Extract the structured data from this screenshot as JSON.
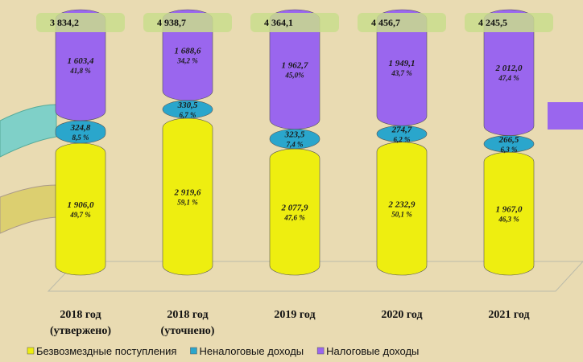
{
  "chart_data": {
    "type": "stacked-cylinder",
    "categories": [
      [
        "2018 год",
        "(утвержено)"
      ],
      [
        "2018 год",
        "(уточнено)"
      ],
      [
        "2019 год"
      ],
      [
        "2020 год"
      ],
      [
        "2021 год"
      ]
    ],
    "totals": [
      3834.2,
      4938.7,
      4364.1,
      4456.7,
      4245.5
    ],
    "total_labels": [
      "3 834,2",
      "4 938,7",
      "4 364,1",
      "4 456,7",
      "4 245,5"
    ],
    "series": [
      {
        "name": "Безвозмездные поступления",
        "color": "#eeee10",
        "values": [
          1906.0,
          2919.6,
          2077.9,
          2232.9,
          1967.0
        ],
        "value_labels": [
          "1 906,0",
          "2 919,6",
          "2 077,9",
          "2 232,9",
          "1 967,0"
        ],
        "shares": [
          49.7,
          59.1,
          47.6,
          50.1,
          46.3
        ],
        "share_labels": [
          "49,7 %",
          "59,1 %",
          "47,6 %",
          "50,1 %",
          "46,3 %"
        ]
      },
      {
        "name": "Неналоговые доходы",
        "color": "#2aa6cc",
        "values": [
          324.8,
          330.5,
          323.5,
          274.7,
          266.5
        ],
        "value_labels": [
          "324,8",
          "330,5",
          "323,5",
          "274,7",
          "266,5"
        ],
        "shares": [
          8.5,
          6.7,
          7.4,
          6.2,
          6.3
        ],
        "share_labels": [
          "8,5 %",
          "6,7 %",
          "7,4 %",
          "6,2 %",
          "6,3 %"
        ]
      },
      {
        "name": "Налоговые доходы",
        "color": "#9a66ee",
        "values": [
          1603.4,
          1688.6,
          1962.7,
          1949.1,
          2012.0
        ],
        "value_labels": [
          "1 603,4",
          "1 688,6",
          "1 962,7",
          "1 949,1",
          "2 012,0"
        ],
        "shares": [
          41.8,
          34.2,
          45.0,
          43.7,
          47.4
        ],
        "share_labels": [
          "41,8 %",
          "34,2 %",
          "45,0%",
          "43,7 %",
          "47,4 %"
        ]
      }
    ]
  }
}
